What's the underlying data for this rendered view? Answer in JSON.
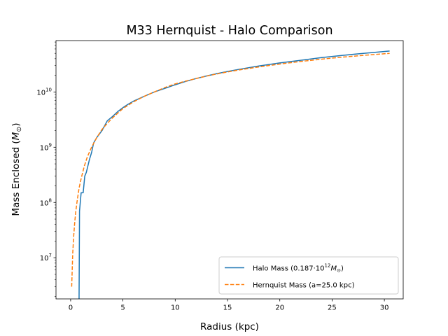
{
  "chart_data": {
    "type": "line",
    "title": "M33 Hernquist - Halo Comparison",
    "xlabel": "Radius (kpc)",
    "ylabel_main": "Mass Enclosed (",
    "ylabel_sym": "M",
    "ylabel_sub": "⊙",
    "ylabel_close": ")",
    "xscale": "linear",
    "yscale": "log",
    "xlim": [
      -1.4,
      31.8
    ],
    "ylim": [
      1800000.0,
      85000000000.0
    ],
    "x_ticks": [
      0,
      5,
      10,
      15,
      20,
      25,
      30
    ],
    "x_tick_labels": [
      "0",
      "5",
      "10",
      "15",
      "20",
      "25",
      "30"
    ],
    "y_major_ticks": [
      10000000.0,
      100000000.0,
      1000000000.0,
      10000000000.0
    ],
    "y_tick_labels": [
      {
        "base": "10",
        "exp": "7"
      },
      {
        "base": "10",
        "exp": "8"
      },
      {
        "base": "10",
        "exp": "9"
      },
      {
        "base": "10",
        "exp": "10"
      }
    ],
    "grid": false,
    "legend_position": "lower-right",
    "series": [
      {
        "name": "Halo Mass (0.187·10",
        "name_exp": "12",
        "name_sym": "M",
        "name_sub": "⊙",
        "name_close": ")",
        "color": "#1f77b4",
        "style": "solid",
        "x": [
          0.8,
          0.85,
          1.0,
          1.2,
          1.35,
          1.5,
          1.8,
          2.0,
          2.2,
          2.5,
          3.0,
          3.5,
          4.0,
          4.5,
          5.0,
          5.5,
          6.0,
          7.0,
          8.0,
          9.0,
          10.0,
          11.0,
          12.0,
          13.0,
          14.0,
          15.0,
          16.0,
          18.0,
          20.0,
          22.0,
          24.0,
          26.0,
          28.0,
          30.5
        ],
        "y": [
          1000000.0,
          70000000.0,
          150000000.0,
          150000000.0,
          300000000.0,
          350000000.0,
          600000000.0,
          800000000.0,
          1200000000.0,
          1500000000.0,
          2000000000.0,
          3000000000.0,
          3600000000.0,
          4400000000.0,
          5200000000.0,
          6000000000.0,
          6800000000.0,
          8300000000.0,
          10000000000.0,
          11600000000.0,
          13500000000.0,
          15500000000.0,
          17500000000.0,
          19500000000.0,
          21500000000.0,
          23500000000.0,
          25500000000.0,
          29500000000.0,
          33500000000.0,
          37500000000.0,
          42000000000.0,
          46000000000.0,
          50000000000.0,
          55000000000.0
        ]
      },
      {
        "name": "Hernquist Mass (a=25.0 kpc)",
        "color": "#ff7f0e",
        "style": "dashed",
        "x": [
          0.1,
          0.2,
          0.3,
          0.4,
          0.5,
          0.6,
          0.8,
          1.0,
          1.3,
          1.6,
          2.0,
          2.5,
          3.0,
          3.5,
          4.0,
          5.0,
          6.0,
          7.0,
          8.0,
          9.0,
          10.0,
          11.0,
          12.0,
          13.0,
          14.0,
          15.0,
          16.0,
          18.0,
          20.0,
          22.0,
          24.0,
          26.0,
          28.0,
          30.5
        ],
        "y": [
          3000000.0,
          12000000.0,
          26000000.0,
          46000000.0,
          71000000.0,
          100000000.0,
          180000000.0,
          270000000.0,
          450000000.0,
          670000000.0,
          1000000000.0,
          1500000000.0,
          2100000000.0,
          2700000000.0,
          3400000000.0,
          5000000000.0,
          6600000000.0,
          8300000000.0,
          10000000000.0,
          12000000000.0,
          14000000000.0,
          15700000000.0,
          17500000000.0,
          19400000000.0,
          21200000000.0,
          23000000000.0,
          24800000000.0,
          28400000000.0,
          32000000000.0,
          35600000000.0,
          39200000000.0,
          42700000000.0,
          46000000000.0,
          50000000000.0
        ]
      }
    ]
  }
}
